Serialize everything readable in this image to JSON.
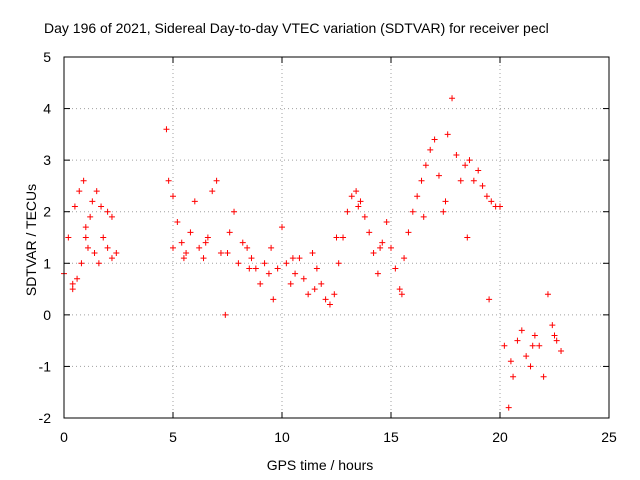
{
  "chart_data": {
    "type": "scatter",
    "title": "Day 196 of 2021, Sidereal Day-to-day VTEC variation (SDTVAR) for receiver pecl",
    "xlabel": "GPS time / hours",
    "ylabel": "SDTVAR / TECUs",
    "xlim": [
      0,
      25
    ],
    "ylim": [
      -2,
      5
    ],
    "xticks": [
      0,
      5,
      10,
      15,
      20,
      25
    ],
    "yticks": [
      -2,
      -1,
      0,
      1,
      2,
      3,
      4,
      5
    ],
    "grid": true,
    "marker": "+",
    "color": "#ff0000",
    "series": [
      {
        "name": "SDTVAR",
        "x": [
          0.0,
          0.2,
          0.4,
          0.5,
          0.7,
          0.9,
          1.0,
          1.1,
          1.3,
          1.5,
          1.7,
          2.0,
          2.2,
          2.4,
          0.4,
          0.6,
          0.8,
          1.0,
          1.2,
          1.4,
          1.6,
          1.8,
          2.0,
          2.2,
          4.7,
          4.8,
          5.0,
          5.2,
          5.4,
          5.6,
          5.8,
          6.0,
          6.2,
          6.4,
          6.6,
          6.8,
          7.0,
          7.2,
          7.4,
          7.6,
          7.8,
          8.0,
          8.2,
          8.4,
          8.6,
          8.8,
          9.0,
          9.2,
          9.4,
          9.6,
          9.8,
          10.0,
          10.2,
          10.4,
          10.6,
          10.8,
          11.0,
          11.2,
          11.4,
          11.6,
          11.8,
          12.0,
          12.2,
          12.4,
          12.6,
          12.8,
          13.0,
          13.2,
          13.4,
          13.6,
          13.8,
          14.0,
          14.2,
          14.4,
          14.6,
          14.8,
          15.0,
          15.2,
          15.4,
          15.6,
          15.8,
          16.0,
          16.2,
          16.4,
          16.6,
          16.8,
          17.0,
          17.2,
          17.4,
          17.6,
          17.8,
          18.0,
          18.2,
          18.4,
          18.6,
          18.8,
          19.0,
          19.2,
          19.4,
          19.6,
          19.8,
          20.0,
          20.2,
          20.4,
          20.6,
          20.8,
          21.0,
          21.2,
          21.4,
          21.6,
          21.8,
          22.0,
          22.2,
          22.4,
          22.6,
          22.8,
          5.0,
          5.5,
          6.5,
          7.5,
          8.5,
          9.5,
          10.5,
          11.5,
          12.5,
          13.5,
          14.5,
          15.5,
          16.5,
          17.5,
          18.5,
          19.5,
          20.5,
          21.5,
          22.5
        ],
        "y": [
          0.8,
          1.5,
          0.5,
          2.1,
          2.4,
          2.6,
          1.7,
          1.3,
          2.2,
          2.4,
          2.1,
          2.0,
          1.9,
          1.2,
          0.6,
          0.7,
          1.0,
          1.5,
          1.9,
          1.2,
          1.0,
          1.5,
          1.3,
          1.1,
          3.6,
          2.6,
          2.3,
          1.8,
          1.4,
          1.2,
          1.6,
          2.2,
          1.3,
          1.1,
          1.5,
          2.4,
          2.6,
          1.2,
          0.0,
          1.6,
          2.0,
          1.0,
          1.4,
          1.3,
          1.1,
          0.9,
          0.6,
          1.0,
          0.8,
          0.3,
          0.9,
          1.7,
          1.0,
          0.6,
          0.8,
          1.1,
          0.7,
          0.4,
          1.2,
          0.9,
          0.6,
          0.3,
          0.2,
          0.4,
          1.0,
          1.5,
          2.0,
          2.3,
          2.4,
          2.2,
          1.9,
          1.6,
          1.2,
          0.8,
          1.4,
          1.8,
          1.3,
          0.9,
          0.5,
          1.1,
          1.6,
          2.0,
          2.3,
          2.6,
          2.9,
          3.2,
          3.4,
          2.7,
          2.0,
          3.5,
          4.2,
          3.1,
          2.6,
          2.9,
          3.0,
          2.6,
          2.8,
          2.5,
          2.3,
          2.2,
          2.1,
          2.1,
          -0.6,
          -1.8,
          -1.2,
          -0.5,
          -0.3,
          -0.8,
          -1.0,
          -0.4,
          -0.6,
          -1.2,
          0.4,
          -0.2,
          -0.5,
          -0.7,
          1.3,
          1.1,
          1.4,
          1.2,
          0.9,
          1.3,
          1.1,
          0.5,
          1.5,
          2.1,
          1.3,
          0.4,
          1.9,
          2.2,
          1.5,
          0.3,
          -0.9,
          -0.6,
          -0.4
        ]
      }
    ]
  }
}
